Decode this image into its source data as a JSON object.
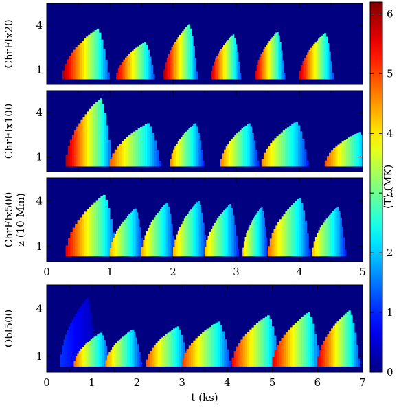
{
  "chart_data": [
    {
      "type": "heatmap",
      "panel": "ChrFlx20",
      "ylabel": "ChrFlx20",
      "yticks": [
        "1",
        "4"
      ],
      "ylim": [
        0,
        5.5
      ],
      "xlim": [
        0,
        5
      ],
      "background_T": 0,
      "heating_events": [
        {
          "t_start": 0.25,
          "t_peak": 0.8,
          "z_max": 3.8,
          "T_max": 6.0
        },
        {
          "t_start": 1.1,
          "t_peak": 1.55,
          "z_max": 2.9,
          "T_max": 5.7
        },
        {
          "t_start": 1.85,
          "t_peak": 2.25,
          "z_max": 4.1,
          "T_max": 6.0
        },
        {
          "t_start": 2.6,
          "t_peak": 2.95,
          "z_max": 3.4,
          "T_max": 5.8
        },
        {
          "t_start": 3.3,
          "t_peak": 3.65,
          "z_max": 3.6,
          "T_max": 5.8
        },
        {
          "t_start": 4.0,
          "t_peak": 4.4,
          "z_max": 3.5,
          "T_max": 5.8
        }
      ]
    },
    {
      "type": "heatmap",
      "panel": "ChrFlx100",
      "ylabel": "ChrFlx100",
      "yticks": [
        "1",
        "4"
      ],
      "ylim": [
        0,
        5.5
      ],
      "xlim": [
        0,
        5
      ],
      "background_T": 0,
      "heating_events": [
        {
          "t_start": 0.3,
          "t_peak": 0.85,
          "z_max": 5.0,
          "T_max": 6.0
        },
        {
          "t_start": 1.0,
          "t_peak": 1.6,
          "z_max": 3.3,
          "T_max": 4.9
        },
        {
          "t_start": 1.95,
          "t_peak": 2.35,
          "z_max": 3.3,
          "T_max": 4.6
        },
        {
          "t_start": 2.75,
          "t_peak": 3.2,
          "z_max": 3.3,
          "T_max": 4.7
        },
        {
          "t_start": 3.4,
          "t_peak": 3.95,
          "z_max": 3.4,
          "T_max": 4.6
        },
        {
          "t_start": 4.4,
          "t_peak": 4.95,
          "z_max": 2.7,
          "T_max": 5.0
        }
      ]
    },
    {
      "type": "heatmap",
      "panel": "ChrFlx500",
      "ylabel": "ChrFlx500",
      "ylabel2": "z (10 Mm)",
      "yticks": [
        "1",
        "4"
      ],
      "xticks": [
        "0",
        "1",
        "2",
        "3",
        "4",
        "5"
      ],
      "ylim": [
        0,
        5.5
      ],
      "xlim": [
        0,
        5
      ],
      "background_T": 0,
      "heating_events": [
        {
          "t_start": 0.3,
          "t_peak": 0.9,
          "z_max": 4.4,
          "T_max": 5.6
        },
        {
          "t_start": 1.0,
          "t_peak": 1.4,
          "z_max": 3.5,
          "T_max": 4.4
        },
        {
          "t_start": 1.5,
          "t_peak": 1.9,
          "z_max": 3.9,
          "T_max": 4.4
        },
        {
          "t_start": 2.0,
          "t_peak": 2.4,
          "z_max": 4.0,
          "T_max": 4.4
        },
        {
          "t_start": 2.5,
          "t_peak": 2.9,
          "z_max": 3.8,
          "T_max": 4.3
        },
        {
          "t_start": 3.1,
          "t_peak": 3.4,
          "z_max": 3.6,
          "T_max": 4.2
        },
        {
          "t_start": 3.5,
          "t_peak": 4.0,
          "z_max": 4.2,
          "T_max": 4.8
        },
        {
          "t_start": 4.2,
          "t_peak": 4.6,
          "z_max": 3.6,
          "T_max": 4.3
        }
      ]
    },
    {
      "type": "heatmap",
      "panel": "Obl500",
      "ylabel": "Obl500",
      "yticks": [
        "1",
        "4"
      ],
      "xticks": [
        "0",
        "1",
        "2",
        "3",
        "4",
        "5",
        "6",
        "7"
      ],
      "xlabel": "t (ks)",
      "ylim": [
        0,
        5.5
      ],
      "xlim": [
        0,
        7
      ],
      "background_T": 0,
      "heating_events": [
        {
          "t_start": 0.3,
          "t_peak": 0.9,
          "z_max": 4.7,
          "T_max": 1.1
        },
        {
          "t_start": 0.6,
          "t_peak": 1.2,
          "z_max": 2.5,
          "T_max": 4.8
        },
        {
          "t_start": 1.3,
          "t_peak": 1.9,
          "z_max": 2.7,
          "T_max": 4.6
        },
        {
          "t_start": 2.2,
          "t_peak": 2.9,
          "z_max": 2.9,
          "T_max": 5.0
        },
        {
          "t_start": 3.0,
          "t_peak": 3.8,
          "z_max": 3.2,
          "T_max": 5.1
        },
        {
          "t_start": 4.1,
          "t_peak": 4.9,
          "z_max": 3.6,
          "T_max": 5.5
        },
        {
          "t_start": 5.0,
          "t_peak": 5.8,
          "z_max": 3.8,
          "T_max": 5.6
        },
        {
          "t_start": 6.0,
          "t_peak": 6.7,
          "z_max": 3.9,
          "T_max": 5.7
        }
      ]
    }
  ],
  "colorbar": {
    "label": "⟨T⟩ (MK)",
    "range": [
      0,
      6.2
    ],
    "ticks": [
      "0",
      "1",
      "2",
      "3",
      "4",
      "5",
      "6"
    ],
    "colormap": "jet"
  }
}
